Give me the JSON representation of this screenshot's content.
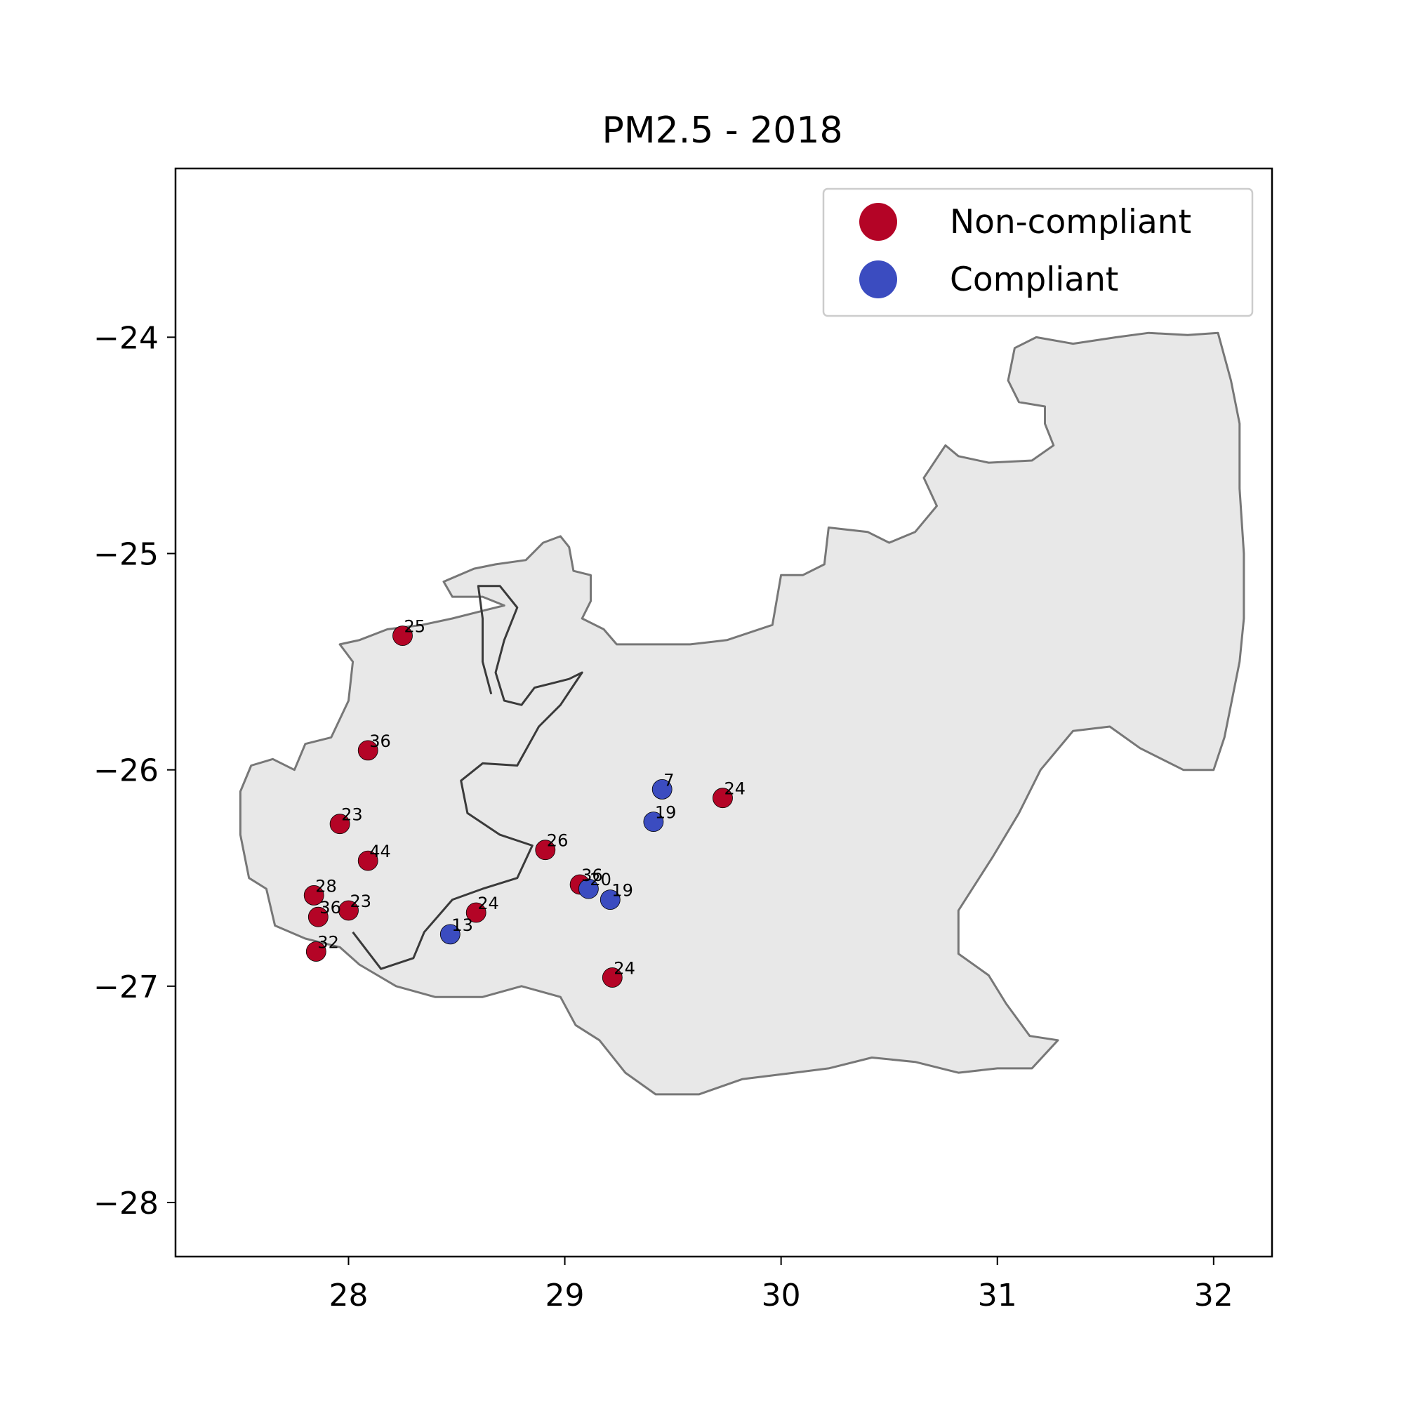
{
  "chart_data": {
    "type": "scatter",
    "title": "PM2.5 - 2018",
    "xlabel": "",
    "ylabel": "",
    "xlim": [
      27.2,
      32.27
    ],
    "ylim": [
      -28.25,
      -23.22
    ],
    "x_ticks": [
      28,
      29,
      30,
      31,
      32
    ],
    "x_tick_labels": [
      "28",
      "29",
      "30",
      "31",
      "32"
    ],
    "y_ticks": [
      -24,
      -25,
      -26,
      -27,
      -28
    ],
    "y_tick_labels": [
      "−24",
      "−25",
      "−26",
      "−27",
      "−28"
    ],
    "grid": false,
    "legend": {
      "placement": "top-right",
      "entries": [
        {
          "label": "Non-compliant",
          "status": "non_compliant"
        },
        {
          "label": "Compliant",
          "status": "compliant"
        }
      ]
    },
    "colors": {
      "non_compliant": "#b40426",
      "compliant": "#3b4cc0",
      "region_fill": "#e8e8e8",
      "outer_border": "#777777",
      "inner_border": "#3a3a3a"
    },
    "region": {
      "outline": [
        [
          27.75,
          -26.0
        ],
        [
          27.8,
          -25.88
        ],
        [
          27.92,
          -25.85
        ],
        [
          28.0,
          -25.68
        ],
        [
          28.02,
          -25.5
        ],
        [
          27.96,
          -25.42
        ],
        [
          28.05,
          -25.4
        ],
        [
          28.18,
          -25.35
        ],
        [
          28.34,
          -25.33
        ],
        [
          28.48,
          -25.3
        ],
        [
          28.64,
          -25.26
        ],
        [
          28.72,
          -25.24
        ],
        [
          28.62,
          -25.2
        ],
        [
          28.48,
          -25.2
        ],
        [
          28.44,
          -25.13
        ],
        [
          28.58,
          -25.07
        ],
        [
          28.68,
          -25.05
        ],
        [
          28.82,
          -25.03
        ],
        [
          28.9,
          -24.95
        ],
        [
          28.98,
          -24.92
        ],
        [
          29.02,
          -24.97
        ],
        [
          29.04,
          -25.08
        ],
        [
          29.12,
          -25.1
        ],
        [
          29.12,
          -25.22
        ],
        [
          29.08,
          -25.3
        ],
        [
          29.18,
          -25.35
        ],
        [
          29.24,
          -25.42
        ],
        [
          29.4,
          -25.42
        ],
        [
          29.58,
          -25.42
        ],
        [
          29.75,
          -25.4
        ],
        [
          29.96,
          -25.33
        ],
        [
          30.0,
          -25.1
        ],
        [
          30.1,
          -25.1
        ],
        [
          30.2,
          -25.05
        ],
        [
          30.22,
          -24.88
        ],
        [
          30.4,
          -24.9
        ],
        [
          30.5,
          -24.95
        ],
        [
          30.62,
          -24.9
        ],
        [
          30.72,
          -24.78
        ],
        [
          30.66,
          -24.65
        ],
        [
          30.76,
          -24.5
        ],
        [
          30.82,
          -24.55
        ],
        [
          30.96,
          -24.58
        ],
        [
          31.16,
          -24.57
        ],
        [
          31.26,
          -24.5
        ],
        [
          31.22,
          -24.4
        ],
        [
          31.22,
          -24.32
        ],
        [
          31.1,
          -24.3
        ],
        [
          31.05,
          -24.2
        ],
        [
          31.08,
          -24.05
        ],
        [
          31.18,
          -24.0
        ],
        [
          31.35,
          -24.03
        ],
        [
          31.55,
          -24.0
        ],
        [
          31.7,
          -23.98
        ],
        [
          31.88,
          -23.99
        ],
        [
          32.02,
          -23.98
        ],
        [
          32.08,
          -24.2
        ],
        [
          32.12,
          -24.4
        ],
        [
          32.12,
          -24.7
        ],
        [
          32.14,
          -25.0
        ],
        [
          32.14,
          -25.3
        ],
        [
          32.12,
          -25.5
        ],
        [
          32.08,
          -25.7
        ],
        [
          32.05,
          -25.85
        ],
        [
          32.0,
          -26.0
        ],
        [
          31.86,
          -26.0
        ],
        [
          31.66,
          -25.9
        ],
        [
          31.52,
          -25.8
        ],
        [
          31.35,
          -25.82
        ],
        [
          31.2,
          -26.0
        ],
        [
          31.1,
          -26.2
        ],
        [
          30.98,
          -26.4
        ],
        [
          30.82,
          -26.65
        ],
        [
          30.82,
          -26.85
        ],
        [
          30.96,
          -26.95
        ],
        [
          31.04,
          -27.08
        ],
        [
          31.15,
          -27.23
        ],
        [
          31.28,
          -27.25
        ],
        [
          31.16,
          -27.38
        ],
        [
          31.0,
          -27.38
        ],
        [
          30.82,
          -27.4
        ],
        [
          30.62,
          -27.35
        ],
        [
          30.42,
          -27.33
        ],
        [
          30.22,
          -27.38
        ],
        [
          30.06,
          -27.4
        ],
        [
          29.82,
          -27.43
        ],
        [
          29.62,
          -27.5
        ],
        [
          29.42,
          -27.5
        ],
        [
          29.28,
          -27.4
        ],
        [
          29.16,
          -27.25
        ],
        [
          29.05,
          -27.18
        ],
        [
          28.98,
          -27.05
        ],
        [
          28.8,
          -27.0
        ],
        [
          28.62,
          -27.05
        ],
        [
          28.4,
          -27.05
        ],
        [
          28.22,
          -27.0
        ],
        [
          28.05,
          -26.9
        ],
        [
          27.96,
          -26.82
        ],
        [
          27.8,
          -26.78
        ],
        [
          27.66,
          -26.72
        ],
        [
          27.62,
          -26.55
        ],
        [
          27.54,
          -26.5
        ],
        [
          27.5,
          -26.3
        ],
        [
          27.5,
          -26.1
        ],
        [
          27.55,
          -25.98
        ],
        [
          27.65,
          -25.95
        ]
      ],
      "inner_boundary": [
        [
          28.02,
          -26.75
        ],
        [
          28.15,
          -26.92
        ],
        [
          28.3,
          -26.87
        ],
        [
          28.35,
          -26.75
        ],
        [
          28.48,
          -26.6
        ],
        [
          28.62,
          -26.55
        ],
        [
          28.78,
          -26.5
        ],
        [
          28.85,
          -26.35
        ],
        [
          28.7,
          -26.3
        ],
        [
          28.55,
          -26.2
        ],
        [
          28.52,
          -26.05
        ],
        [
          28.62,
          -25.97
        ],
        [
          28.78,
          -25.98
        ],
        [
          28.88,
          -25.8
        ],
        [
          28.98,
          -25.7
        ],
        [
          29.08,
          -25.55
        ],
        [
          29.02,
          -25.58
        ],
        [
          28.94,
          -25.6
        ],
        [
          28.86,
          -25.62
        ],
        [
          28.8,
          -25.7
        ],
        [
          28.72,
          -25.68
        ],
        [
          28.68,
          -25.55
        ],
        [
          28.72,
          -25.4
        ],
        [
          28.78,
          -25.25
        ],
        [
          28.7,
          -25.15
        ],
        [
          28.6,
          -25.15
        ],
        [
          28.62,
          -25.3
        ],
        [
          28.62,
          -25.5
        ],
        [
          28.66,
          -25.65
        ]
      ]
    },
    "points": [
      {
        "x": 28.25,
        "y": -25.38,
        "value": 25,
        "status": "non_compliant"
      },
      {
        "x": 28.09,
        "y": -25.91,
        "value": 36,
        "status": "non_compliant"
      },
      {
        "x": 27.96,
        "y": -26.25,
        "value": 23,
        "status": "non_compliant"
      },
      {
        "x": 28.09,
        "y": -26.42,
        "value": 44,
        "status": "non_compliant"
      },
      {
        "x": 27.84,
        "y": -26.58,
        "value": 28,
        "status": "non_compliant"
      },
      {
        "x": 28.0,
        "y": -26.65,
        "value": 23,
        "status": "non_compliant"
      },
      {
        "x": 27.86,
        "y": -26.68,
        "value": 36,
        "status": "non_compliant"
      },
      {
        "x": 27.85,
        "y": -26.84,
        "value": 32,
        "status": "non_compliant"
      },
      {
        "x": 28.59,
        "y": -26.66,
        "value": 24,
        "status": "non_compliant"
      },
      {
        "x": 28.47,
        "y": -26.76,
        "value": 13,
        "status": "compliant"
      },
      {
        "x": 28.91,
        "y": -26.37,
        "value": 26,
        "status": "non_compliant"
      },
      {
        "x": 29.07,
        "y": -26.53,
        "value": 36,
        "status": "non_compliant"
      },
      {
        "x": 29.11,
        "y": -26.55,
        "value": 20,
        "status": "compliant"
      },
      {
        "x": 29.21,
        "y": -26.6,
        "value": 19,
        "status": "compliant"
      },
      {
        "x": 29.45,
        "y": -26.09,
        "value": 7,
        "status": "compliant"
      },
      {
        "x": 29.41,
        "y": -26.24,
        "value": 19,
        "status": "compliant"
      },
      {
        "x": 29.73,
        "y": -26.13,
        "value": 24,
        "status": "non_compliant"
      },
      {
        "x": 29.22,
        "y": -26.96,
        "value": 24,
        "status": "non_compliant"
      }
    ]
  }
}
